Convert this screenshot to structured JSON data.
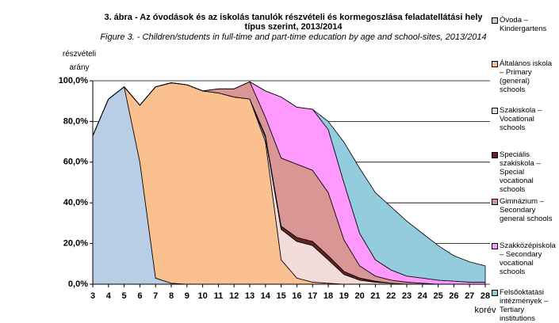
{
  "chart_data": {
    "type": "stacked_area",
    "title": "3. ábra - Az óvodások és az iskolás tanulók részvételi és kormegoszlása feladatellátási hely típus szerint, 2013/2014",
    "subtitle": "Figure 3. - Children/students in full-time and part-time education by age and school-sites, 2013/2014",
    "y_label": "részvételi arány",
    "x_label": "korév",
    "categories": [
      3,
      4,
      5,
      6,
      7,
      8,
      9,
      10,
      11,
      12,
      13,
      14,
      15,
      16,
      17,
      18,
      19,
      20,
      21,
      22,
      23,
      24,
      25,
      26,
      27,
      28
    ],
    "series": [
      {
        "name": "Óvoda – Kindergartens",
        "color": "#b9cde5",
        "values": [
          73,
          91,
          97,
          60,
          3,
          0.5,
          0,
          0,
          0,
          0,
          0,
          0,
          0,
          0,
          0,
          0,
          0,
          0,
          0,
          0,
          0,
          0,
          0,
          0,
          0,
          0
        ]
      },
      {
        "name": "Általános iskola – Primary (general) schools",
        "color": "#fac090",
        "values": [
          0,
          0,
          0,
          28,
          94,
          98.5,
          98,
          95,
          94,
          92,
          91,
          70,
          12,
          3,
          1,
          0.5,
          0,
          0,
          0,
          0,
          0,
          0,
          0,
          0,
          0,
          0
        ]
      },
      {
        "name": "Szakiskola – Vocational schools",
        "color": "#f2dcdb",
        "values": [
          0,
          0,
          0,
          0,
          0,
          0,
          0,
          0,
          0,
          0,
          0,
          2,
          15,
          18,
          18,
          11.5,
          4.8,
          2,
          1,
          0.5,
          0,
          0,
          0,
          0,
          0,
          0
        ]
      },
      {
        "name": "Speciális szakiskola – Special vocational schools",
        "color": "#632523",
        "values": [
          0,
          0,
          0,
          0,
          0,
          0,
          0,
          0,
          0,
          0,
          0,
          1,
          1.5,
          2,
          2,
          2,
          1.5,
          1,
          0.5,
          0,
          0,
          0,
          0,
          0,
          0,
          0
        ]
      },
      {
        "name": "Gimnázium – Secondary general schools",
        "color": "#d99694",
        "values": [
          0,
          0,
          0,
          0,
          0,
          0,
          0,
          0,
          2,
          4,
          8.5,
          9,
          33.5,
          36,
          35,
          31,
          15.5,
          6,
          2.5,
          1.5,
          1,
          0.5,
          0,
          0,
          0,
          0
        ]
      },
      {
        "name": "Szakközépiskola – Secondary vocational schools",
        "color": "#ff99ff",
        "values": [
          0,
          0,
          0,
          0,
          0,
          0,
          0,
          0,
          0,
          0,
          0,
          13,
          30,
          28,
          30,
          31,
          28,
          16,
          8,
          5,
          3,
          2.5,
          2,
          1.5,
          1,
          1
        ]
      },
      {
        "name": "Felsőoktatási intézmények – Tertiary institutions",
        "color": "#93cddd",
        "values": [
          0,
          0,
          0,
          0,
          0,
          0,
          0,
          0,
          0,
          0,
          0,
          0,
          0,
          0,
          0,
          4,
          20,
          32,
          33,
          31,
          27,
          22,
          17,
          12.5,
          10,
          8
        ]
      }
    ],
    "ylim": [
      0,
      100
    ],
    "yticks": [
      {
        "value": 0,
        "label": "0,0%"
      },
      {
        "value": 20,
        "label": "20,0%"
      },
      {
        "value": 40,
        "label": "40,0%"
      },
      {
        "value": 60,
        "label": "60,0%"
      },
      {
        "value": 80,
        "label": "80,0%"
      },
      {
        "value": 100,
        "label": "100,0%"
      }
    ],
    "grid": true
  }
}
